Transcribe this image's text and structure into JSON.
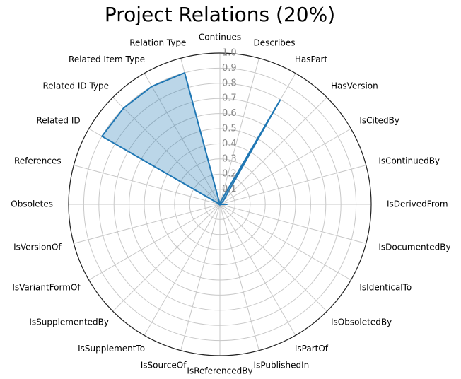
{
  "chart_data": {
    "type": "radar",
    "title": "Project Relations (20%)",
    "categories": [
      "Continues",
      "Describes",
      "HasPart",
      "HasVersion",
      "IsCitedBy",
      "IsContinuedBy",
      "IsDerivedFrom",
      "IsDocumentedBy",
      "IsIdenticalTo",
      "IsObsoletedBy",
      "IsPartOf",
      "IsPublishedIn",
      "IsReferencedBy",
      "IsSourceOf",
      "IsSupplementTo",
      "IsSupplementedBy",
      "IsVariantFormOf",
      "IsVersionOf",
      "Obsoletes",
      "References",
      "Related ID",
      "Related ID Type",
      "Related Item Type",
      "Relation Type"
    ],
    "values": [
      0,
      0.02,
      0.8,
      0.03,
      0,
      0,
      0.05,
      0,
      0,
      0,
      0,
      0,
      0,
      0,
      0,
      0,
      0,
      0,
      0,
      0,
      0.9,
      0.9,
      0.9,
      0.9
    ],
    "color": "#1f77b4",
    "ylim": [
      0,
      1
    ],
    "yticks": [
      0.1,
      0.2,
      0.3,
      0.4,
      0.5,
      0.6,
      0.7,
      0.8,
      0.9,
      {
        "value": 1,
        "label": "1.0"
      }
    ],
    "grid": true
  }
}
